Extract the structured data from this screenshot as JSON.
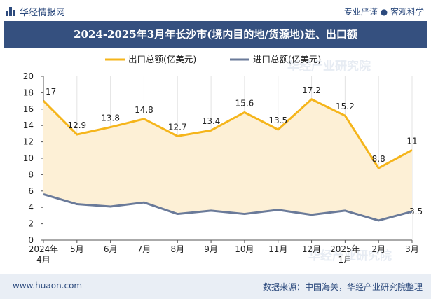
{
  "header": {
    "brand": "华经情报网",
    "tagline": "专业严谨 ● 客观科学"
  },
  "footer": {
    "site": "www.huaon.com",
    "source": "数据来源：中国海关，华经产业研究院整理"
  },
  "watermark": "华经产业研究院",
  "chart_data": {
    "type": "line",
    "title": "2024-2025年3月年长沙市(境内目的地/货源地)进、出口额",
    "categories": [
      "2024年\n4月",
      "5月",
      "6月",
      "7月",
      "8月",
      "9月",
      "10月",
      "11月",
      "12月",
      "2025年\n1月",
      "2月",
      "3月"
    ],
    "ylim": [
      0,
      20
    ],
    "yticks": [
      0,
      2,
      4,
      6,
      8,
      10,
      12,
      14,
      16,
      18,
      20
    ],
    "grid": "vertical",
    "legend_position": "top",
    "series": [
      {
        "name": "出口总额(亿美元)",
        "color": "#f5b51b",
        "fill": "#fdf0d6",
        "values": [
          17,
          12.9,
          13.8,
          14.8,
          12.7,
          13.4,
          15.6,
          13.5,
          17.2,
          15.2,
          8.8,
          11
        ],
        "labels": [
          "17",
          "12.9",
          "13.8",
          "14.8",
          "12.7",
          "13.4",
          "15.6",
          "13.5",
          "17.2",
          "15.2",
          "8.8",
          "11"
        ]
      },
      {
        "name": "进口总额(亿美元)",
        "color": "#6a7a99",
        "fill": "#ffffff",
        "values": [
          5.6,
          4.4,
          4.1,
          4.6,
          3.2,
          3.6,
          3.2,
          3.7,
          3.1,
          3.6,
          2.4,
          3.5
        ],
        "labels": [
          "",
          "",
          "",
          "",
          "",
          "",
          "",
          "",
          "",
          "",
          "",
          "3.5"
        ]
      }
    ]
  }
}
